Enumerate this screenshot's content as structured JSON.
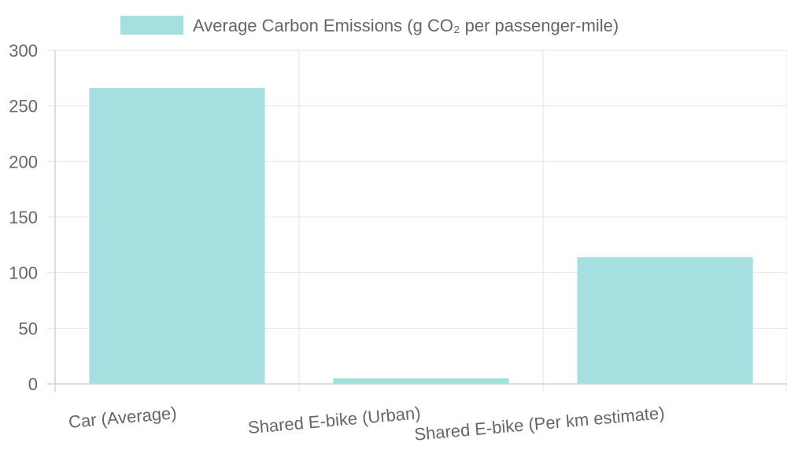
{
  "chart_data": {
    "type": "bar",
    "categories": [
      "Car (Average)",
      "Shared E-bike (Urban)",
      "Shared E-bike (Per km estimate)"
    ],
    "series": [
      {
        "name": "Average Carbon Emissions (g CO₂ per passenger-mile)",
        "values": [
          266,
          5,
          114
        ],
        "color": "#a6dfdf"
      }
    ],
    "ylim": [
      0,
      300
    ],
    "yticks": [
      0,
      50,
      100,
      150,
      200,
      250,
      300
    ],
    "grid": true,
    "legend_position": "top",
    "xlabel": "",
    "ylabel": ""
  }
}
